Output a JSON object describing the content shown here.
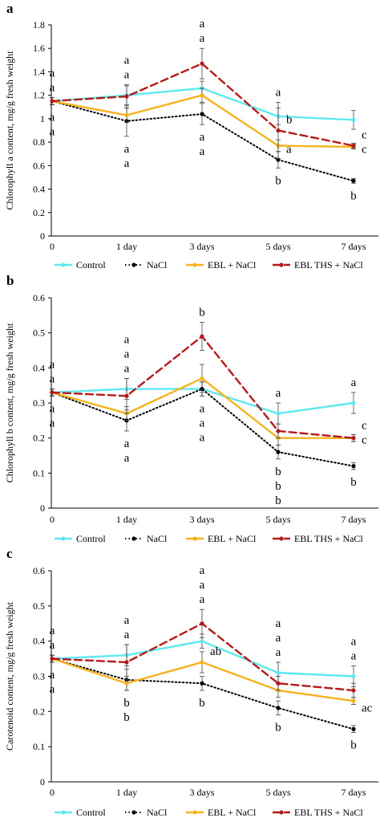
{
  "colors": {
    "Control": "#5fe8f0",
    "NaCl": "#000000",
    "EBL + NaCl": "#f5b21f",
    "EBL THS + NaCl": "#b41a1a"
  },
  "chart_data": [
    {
      "panel": "a",
      "type": "line",
      "ylabel": "Chlorophyll a content, mg/g fresh weight",
      "ylim": [
        0,
        1.8
      ],
      "yticks": [
        "0",
        "0.2",
        "0.4",
        "0.6",
        "0.8",
        "1",
        "1.2",
        "1.4",
        "1.6",
        "1.8"
      ],
      "categories": [
        "0",
        "1 day",
        "3 days",
        "5 days",
        "7 days"
      ],
      "series": [
        {
          "name": "Control",
          "values": [
            1.15,
            1.2,
            1.26,
            1.02,
            0.99
          ],
          "errors": [
            0.03,
            0.08,
            0.06,
            0.07,
            0.08
          ]
        },
        {
          "name": "NaCl",
          "values": [
            1.15,
            0.98,
            1.04,
            0.65,
            0.47
          ],
          "errors": [
            0.03,
            0.13,
            0.09,
            0.07,
            0.02
          ]
        },
        {
          "name": "EBL + NaCl",
          "values": [
            1.15,
            1.03,
            1.2,
            0.77,
            0.76
          ],
          "errors": [
            0.03,
            0.06,
            0.06,
            0.05,
            0.02
          ]
        },
        {
          "name": "EBL THS + NaCl",
          "values": [
            1.15,
            1.19,
            1.47,
            0.9,
            0.77
          ],
          "errors": [
            0.03,
            0.1,
            0.13,
            0.24,
            0.02
          ]
        }
      ],
      "annotations": [
        {
          "x": 0,
          "labels": [
            "a",
            "a"
          ],
          "place": "above",
          "offset": 0
        },
        {
          "x": 0,
          "labels": [
            "a",
            "a"
          ],
          "place": "below",
          "offset": 0
        },
        {
          "x": 1,
          "labels": [
            "a",
            "a"
          ],
          "place": "above",
          "offset": 0
        },
        {
          "x": 1,
          "labels": [
            "a",
            "a"
          ],
          "place": "below",
          "offset": 0
        },
        {
          "x": 2,
          "labels": [
            "a",
            "a"
          ],
          "place": "above",
          "offset": 0
        },
        {
          "x": 2,
          "labels": [
            "a",
            "a"
          ],
          "place": "below",
          "offset": 0
        },
        {
          "x": 3,
          "labels": [
            "a"
          ],
          "place": "above",
          "offset": 0
        },
        {
          "x": 3,
          "labels": [
            "b"
          ],
          "place": "right",
          "value": 0.96
        },
        {
          "x": 3,
          "labels": [
            "a"
          ],
          "place": "right",
          "value": 0.71
        },
        {
          "x": 3,
          "labels": [
            "b"
          ],
          "place": "below",
          "offset": 0
        },
        {
          "x": 4,
          "labels": [
            "c",
            "c"
          ],
          "place": "right",
          "value": 0.83
        },
        {
          "x": 4,
          "labels": [
            "b"
          ],
          "place": "below",
          "offset": 0
        }
      ]
    },
    {
      "panel": "b",
      "type": "line",
      "ylabel": "Chlorophyll b content, mg/g fresh weight",
      "ylim": [
        0,
        0.6
      ],
      "yticks": [
        "0",
        "0.1",
        "0.2",
        "0.3",
        "0.4",
        "0.5",
        "0.6"
      ],
      "categories": [
        "0",
        "1 day",
        "3 days",
        "5 days",
        "7 days"
      ],
      "series": [
        {
          "name": "Control",
          "values": [
            0.33,
            0.34,
            0.34,
            0.27,
            0.3
          ],
          "errors": [
            0.01,
            0.03,
            0.02,
            0.03,
            0.03
          ]
        },
        {
          "name": "NaCl",
          "values": [
            0.33,
            0.25,
            0.34,
            0.16,
            0.12
          ],
          "errors": [
            0.01,
            0.03,
            0.02,
            0.02,
            0.01
          ]
        },
        {
          "name": "EBL + NaCl",
          "values": [
            0.33,
            0.27,
            0.37,
            0.2,
            0.2
          ],
          "errors": [
            0.01,
            0.02,
            0.04,
            0.02,
            0.01
          ]
        },
        {
          "name": "EBL THS + NaCl",
          "values": [
            0.33,
            0.32,
            0.49,
            0.22,
            0.2
          ],
          "errors": [
            0.01,
            0.05,
            0.04,
            0.02,
            0.01
          ]
        }
      ],
      "annotations": [
        {
          "x": 0,
          "labels": [
            "a",
            "a"
          ],
          "place": "above",
          "offset": 0
        },
        {
          "x": 0,
          "labels": [
            "a",
            "a"
          ],
          "place": "below",
          "offset": 0
        },
        {
          "x": 1,
          "labels": [
            "a",
            "a",
            "a"
          ],
          "place": "above",
          "offset": 0
        },
        {
          "x": 1,
          "labels": [
            "a",
            "a"
          ],
          "place": "below",
          "offset": 0
        },
        {
          "x": 2,
          "labels": [
            "b"
          ],
          "place": "above",
          "offset": 0
        },
        {
          "x": 2,
          "labels": [
            "a",
            "a",
            "a"
          ],
          "place": "below",
          "offset": 0
        },
        {
          "x": 3,
          "labels": [
            "a"
          ],
          "place": "above",
          "offset": 0
        },
        {
          "x": 3,
          "labels": [
            "b",
            "b",
            "b"
          ],
          "place": "below",
          "offset": 0
        },
        {
          "x": 4,
          "labels": [
            "a"
          ],
          "place": "above",
          "offset": 0
        },
        {
          "x": 4,
          "labels": [
            "c",
            "c"
          ],
          "place": "right",
          "value": 0.226
        },
        {
          "x": 4,
          "labels": [
            "b"
          ],
          "place": "below",
          "offset": 0
        }
      ]
    },
    {
      "panel": "c",
      "type": "line",
      "ylabel": "Carotenoid content, mg/g fresh weight",
      "ylim": [
        0,
        0.6
      ],
      "yticks": [
        "0",
        "0.1",
        "0.2",
        "0.3",
        "0.4",
        "0.5",
        "0.6"
      ],
      "categories": [
        "0",
        "1 day",
        "3 days",
        "5 days",
        "7 days"
      ],
      "series": [
        {
          "name": "Control",
          "values": [
            0.35,
            0.36,
            0.4,
            0.31,
            0.3
          ],
          "errors": [
            0.01,
            0.03,
            0.02,
            0.03,
            0.03
          ]
        },
        {
          "name": "NaCl",
          "values": [
            0.35,
            0.29,
            0.28,
            0.21,
            0.15
          ],
          "errors": [
            0.01,
            0.03,
            0.02,
            0.02,
            0.01
          ]
        },
        {
          "name": "EBL + NaCl",
          "values": [
            0.35,
            0.28,
            0.34,
            0.26,
            0.23
          ],
          "errors": [
            0.01,
            0.02,
            0.03,
            0.02,
            0.01
          ]
        },
        {
          "name": "EBL THS + NaCl",
          "values": [
            0.35,
            0.34,
            0.45,
            0.28,
            0.26
          ],
          "errors": [
            0.01,
            0.05,
            0.04,
            0.02,
            0.02
          ]
        }
      ],
      "annotations": [
        {
          "x": 0,
          "labels": [
            "a",
            "a"
          ],
          "place": "above",
          "offset": 0
        },
        {
          "x": 0,
          "labels": [
            "a",
            "a"
          ],
          "place": "below",
          "offset": 0
        },
        {
          "x": 1,
          "labels": [
            "a",
            "a"
          ],
          "place": "above",
          "offset": 0
        },
        {
          "x": 1,
          "labels": [
            "b",
            "b"
          ],
          "place": "below",
          "offset": 0
        },
        {
          "x": 2,
          "labels": [
            "a",
            "a",
            "a"
          ],
          "place": "above",
          "offset": 0
        },
        {
          "x": 2,
          "labels": [
            "ab"
          ],
          "place": "right",
          "value": 0.36
        },
        {
          "x": 2,
          "labels": [
            "b"
          ],
          "place": "below",
          "offset": 0
        },
        {
          "x": 3,
          "labels": [
            "a",
            "a",
            "a"
          ],
          "place": "above",
          "offset": 0
        },
        {
          "x": 3,
          "labels": [
            "b"
          ],
          "place": "below",
          "offset": 0
        },
        {
          "x": 4,
          "labels": [
            "a",
            "a"
          ],
          "place": "above",
          "offset": 0
        },
        {
          "x": 4,
          "labels": [
            "ac"
          ],
          "place": "right",
          "value": 0.2
        },
        {
          "x": 4,
          "labels": [
            "b"
          ],
          "place": "below",
          "offset": 0
        }
      ]
    }
  ]
}
